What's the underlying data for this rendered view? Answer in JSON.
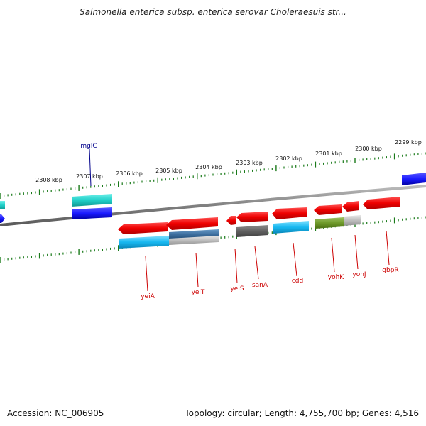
{
  "title": "Salmonella enterica subsp. enterica serovar Choleraesuis str...",
  "accession": "Accession: NC_006905",
  "summary": "Topology: circular; Length: 4,755,700 bp; Genes: 4,516",
  "colors": {
    "backbone": "#8a8a8a",
    "tick": "#1a7a1a",
    "label_forward": "#00008b",
    "label_reverse": "#cc0000"
  },
  "scale_labels": [
    "2308 kbp",
    "2307 kbp",
    "2306 kbp",
    "2305 kbp",
    "2304 kbp",
    "2303 kbp",
    "2302 kbp",
    "2301 kbp",
    "2300 kbp",
    "2299 kbp"
  ],
  "genes": [
    {
      "name": "mglC",
      "strand": "forward",
      "color": "#1a1aff"
    },
    {
      "name": "yeiA",
      "strand": "reverse",
      "color": "#ff1a1a"
    },
    {
      "name": "yeiT",
      "strand": "reverse",
      "color": "#ff1a1a"
    },
    {
      "name": "yeiS",
      "strand": "reverse",
      "color": "#ff1a1a"
    },
    {
      "name": "sanA",
      "strand": "reverse",
      "color": "#ff1a1a"
    },
    {
      "name": "cdd",
      "strand": "reverse",
      "color": "#ff1a1a"
    },
    {
      "name": "yohK",
      "strand": "reverse",
      "color": "#ff1a1a"
    },
    {
      "name": "yohJ",
      "strand": "reverse",
      "color": "#ff1a1a"
    },
    {
      "name": "gbpR",
      "strand": "reverse",
      "color": "#ff1a1a"
    }
  ]
}
